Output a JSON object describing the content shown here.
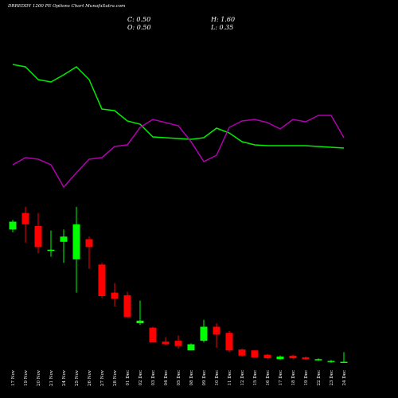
{
  "chart_data": {
    "type": "candlestick",
    "title": "DRREDDY 1200 PE Options Chart MunafaSutra.com",
    "stats": [
      "C: 0.50",
      "H: 1.60",
      "O: 0.50",
      "L: 0.35"
    ],
    "categories": [
      "17 Nov",
      "19 Nov",
      "20 Nov",
      "21 Nov",
      "24 Nov",
      "25 Nov",
      "26 Nov",
      "27 Nov",
      "28 Nov",
      "01 Dec",
      "02 Dec",
      "03 Dec",
      "04 Dec",
      "05 Dec",
      "08 Dec",
      "09 Dec",
      "10 Dec",
      "11 Dec",
      "12 Dec",
      "15 Dec",
      "16 Dec",
      "17 Dec",
      "18 Dec",
      "19 Dec",
      "22 Dec",
      "23 Dec",
      "24 Dec"
    ],
    "open": [
      15.6,
      17.5,
      16.0,
      13.2,
      14.2,
      12.2,
      14.5,
      11.6,
      8.4,
      8.1,
      4.9,
      4.4,
      2.8,
      2.9,
      1.8,
      2.9,
      4.5,
      3.8,
      1.9,
      1.8,
      1.3,
      0.8,
      1.2,
      1.0,
      0.7,
      0.5,
      0.5
    ],
    "high": [
      16.7,
      18.2,
      17.5,
      15.5,
      15.6,
      18.2,
      14.8,
      11.8,
      9.5,
      8.5,
      7.5,
      4.5,
      3.3,
      3.5,
      2.6,
      5.3,
      4.9,
      4.0,
      2.0,
      1.8,
      1.4,
      1.2,
      1.3,
      1.1,
      0.9,
      0.7,
      1.6
    ],
    "low": [
      15.3,
      14.1,
      12.9,
      12.5,
      11.8,
      8.4,
      11.1,
      7.8,
      6.8,
      5.5,
      4.7,
      2.7,
      2.4,
      2.0,
      1.8,
      2.7,
      2.1,
      1.6,
      1.1,
      1.0,
      0.8,
      0.7,
      0.8,
      0.7,
      0.6,
      0.4,
      0.35
    ],
    "close": [
      16.5,
      16.2,
      13.6,
      13.3,
      14.8,
      16.2,
      13.6,
      8.0,
      7.7,
      5.6,
      5.2,
      2.7,
      2.5,
      2.3,
      2.5,
      4.5,
      3.6,
      1.8,
      1.2,
      1.0,
      0.9,
      1.1,
      0.9,
      0.8,
      0.8,
      0.6,
      0.5
    ],
    "up_color": "#00ff00",
    "down_color": "#ff0000",
    "ylim": [
      0,
      19
    ],
    "indicator": {
      "ylim": [
        0,
        100
      ],
      "series": [
        {
          "color": "#00ee00",
          "values": [
            89.5,
            88,
            80,
            78.5,
            83,
            88,
            80,
            61.5,
            60.5,
            54,
            52,
            44,
            43.5,
            43,
            42.5,
            43.5,
            49.5,
            46.5,
            41,
            39,
            38.5,
            38.5,
            38.5,
            38.5,
            38,
            37.5,
            37
          ]
        },
        {
          "color": "#b000b0",
          "values": [
            26.5,
            31,
            30,
            26.5,
            12.5,
            21.5,
            30,
            31,
            38,
            39,
            50,
            55,
            53,
            51,
            41,
            28.5,
            32.5,
            50,
            54,
            55,
            53,
            49,
            55,
            53.5,
            57.5,
            57.5,
            43.5
          ]
        }
      ]
    }
  }
}
